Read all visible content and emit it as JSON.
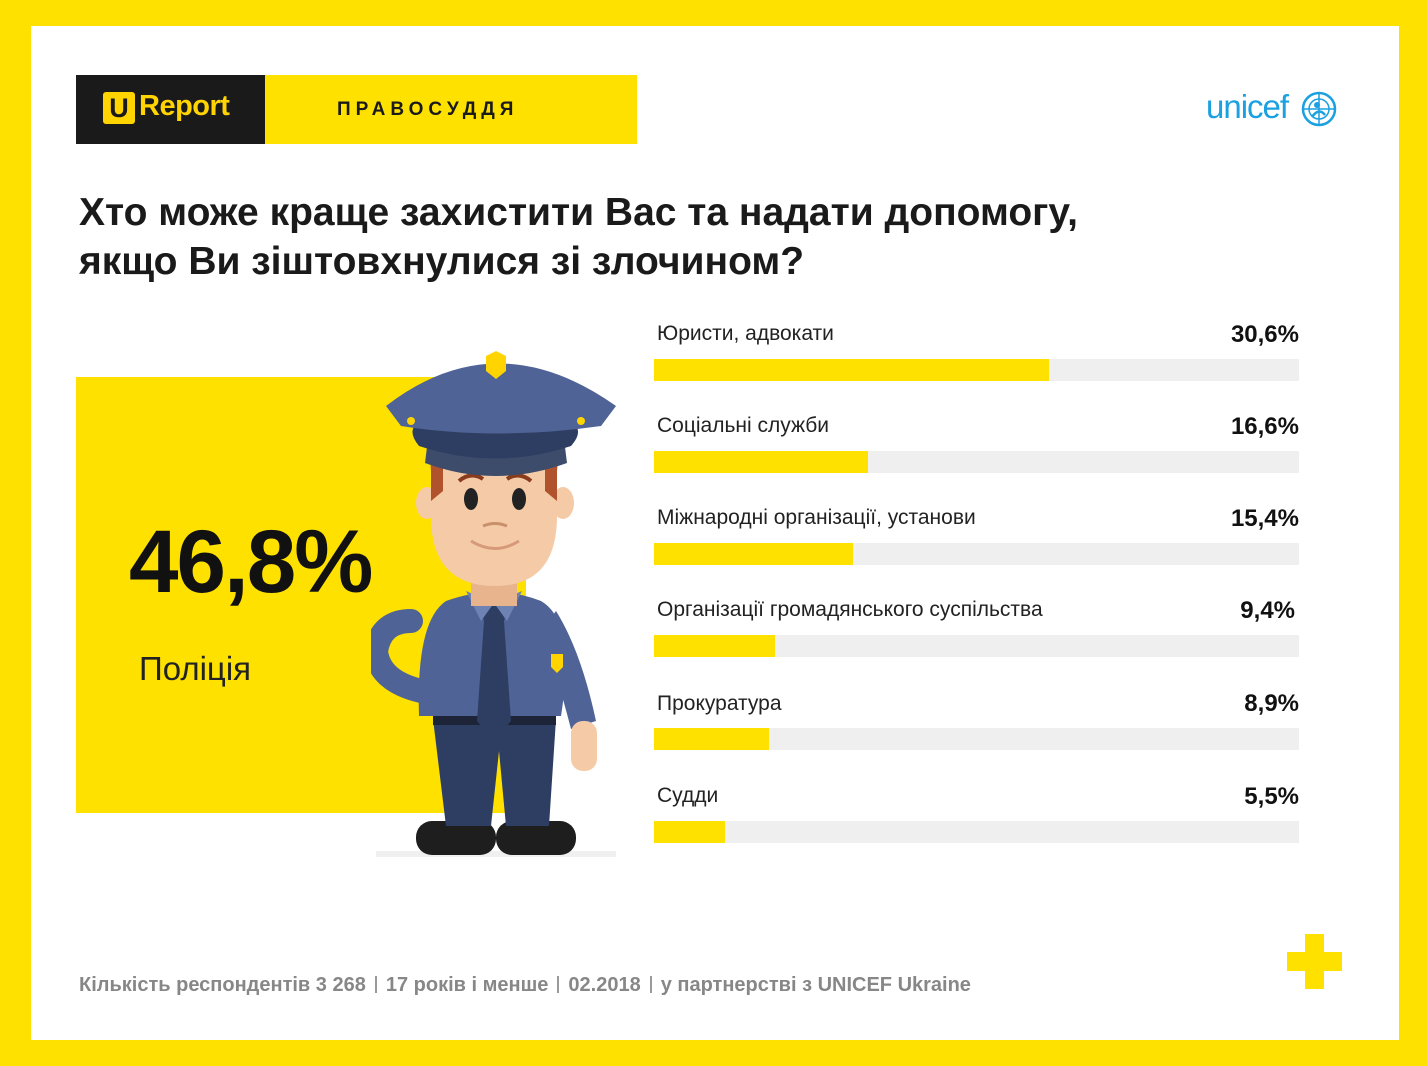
{
  "brand": {
    "u_letter": "U",
    "report_word": "Report",
    "topic": "ПРАВОСУДДЯ",
    "partner_logo_text": "unicef"
  },
  "question": {
    "line1": "Хто може краще захистити Вас та надати допомогу,",
    "line2": "якщо Ви зіштовхнулися зі злочином?"
  },
  "highlight": {
    "value": "46,8%",
    "label": "Поліція"
  },
  "colors": {
    "accent": "#ffe100",
    "track": "#efefef",
    "police_uniform": "#4f6396",
    "unicef_blue": "#1ba0e0"
  },
  "chart_data": {
    "type": "bar",
    "orientation": "horizontal",
    "xlim": [
      0,
      50
    ],
    "categories": [
      "Юристи, адвокати",
      "Соціальні служби",
      "Міжнародні організації, установи",
      "Організації громадянського суспільства",
      "Прокуратура",
      "Судди"
    ],
    "values": [
      30.6,
      16.6,
      15.4,
      9.4,
      8.9,
      5.5
    ],
    "value_labels": [
      "30,6%",
      "16,6%",
      "15,4%",
      "9,4%",
      "8,9%",
      "5,5%"
    ]
  },
  "footer": {
    "respondents": "Кількість респондентів 3 268",
    "age": "17 років і менше",
    "date": "02.2018",
    "partner": "у партнерстві з UNICEF Ukraine"
  }
}
